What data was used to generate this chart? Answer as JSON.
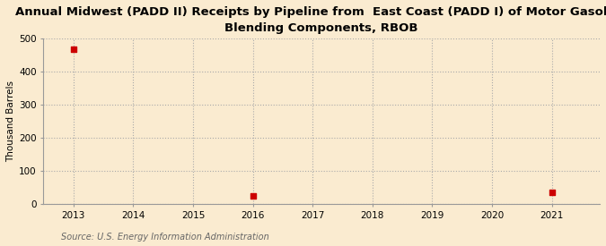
{
  "title": "Annual Midwest (PADD II) Receipts by Pipeline from  East Coast (PADD I) of Motor Gasoline\nBlending Components, RBOB",
  "ylabel": "Thousand Barrels",
  "source": "Source: U.S. Energy Information Administration",
  "background_color": "#faebd0",
  "plot_bg_color": "#faebd0",
  "x_data": [
    2013,
    2016,
    2021
  ],
  "y_data": [
    469,
    25,
    37
  ],
  "marker_color": "#cc0000",
  "marker_size": 4,
  "xlim": [
    2012.5,
    2021.8
  ],
  "ylim": [
    0,
    500
  ],
  "yticks": [
    0,
    100,
    200,
    300,
    400,
    500
  ],
  "xticks": [
    2013,
    2014,
    2015,
    2016,
    2017,
    2018,
    2019,
    2020,
    2021
  ],
  "grid_color": "#aaaaaa",
  "grid_style": ":",
  "title_fontsize": 9.5,
  "label_fontsize": 7.5,
  "tick_fontsize": 7.5,
  "source_fontsize": 7
}
